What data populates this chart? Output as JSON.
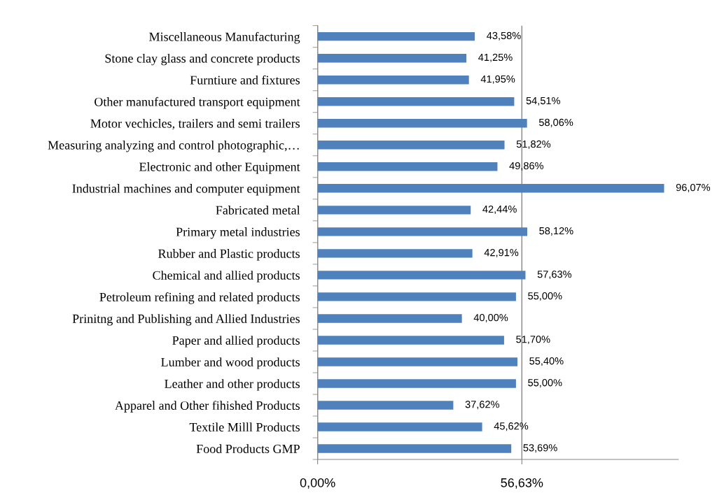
{
  "chart_data": {
    "type": "bar",
    "orientation": "horizontal",
    "categories": [
      "Miscellaneous Manufacturing",
      "Stone clay glass and concrete products",
      "Furntiure and fixtures",
      "Other manufactured transport equipment",
      "Motor vechicles, trailers and semi trailers",
      "Measuring analyzing and control photographic,…",
      "Electronic and other Equipment",
      "Industrial machines and computer equipment",
      "Fabricated metal",
      "Primary metal industries",
      "Rubber and Plastic products",
      "Chemical and allied products",
      "Petroleum refining and related products",
      "Prinitng and Publishing and Allied Industries",
      "Paper and allied products",
      "Lumber and wood products",
      "Leather and other products",
      "Apparel and Other fihished Products",
      "Textile Milll Products",
      "Food Products GMP"
    ],
    "values": [
      43.58,
      41.25,
      41.95,
      54.51,
      58.06,
      51.82,
      49.86,
      96.07,
      42.44,
      58.12,
      42.91,
      57.63,
      55.0,
      40.0,
      51.7,
      55.4,
      55.0,
      37.62,
      45.62,
      53.69
    ],
    "value_labels": [
      "43,58%",
      "41,25%",
      "41,95%",
      "54,51%",
      "58,06%",
      "51,82%",
      "49,86%",
      "96,07%",
      "42,44%",
      "58,12%",
      "42,91%",
      "57,63%",
      "55,00%",
      "40,00%",
      "51,70%",
      "55,40%",
      "55,00%",
      "37,62%",
      "45,62%",
      "53,69%"
    ],
    "color": "#4f81bd",
    "xlim": [
      0,
      100
    ],
    "xticks": [
      {
        "value": 0,
        "label": "0,00%"
      },
      {
        "value": 56.63,
        "label": "56,63%"
      }
    ],
    "grid": "x"
  }
}
